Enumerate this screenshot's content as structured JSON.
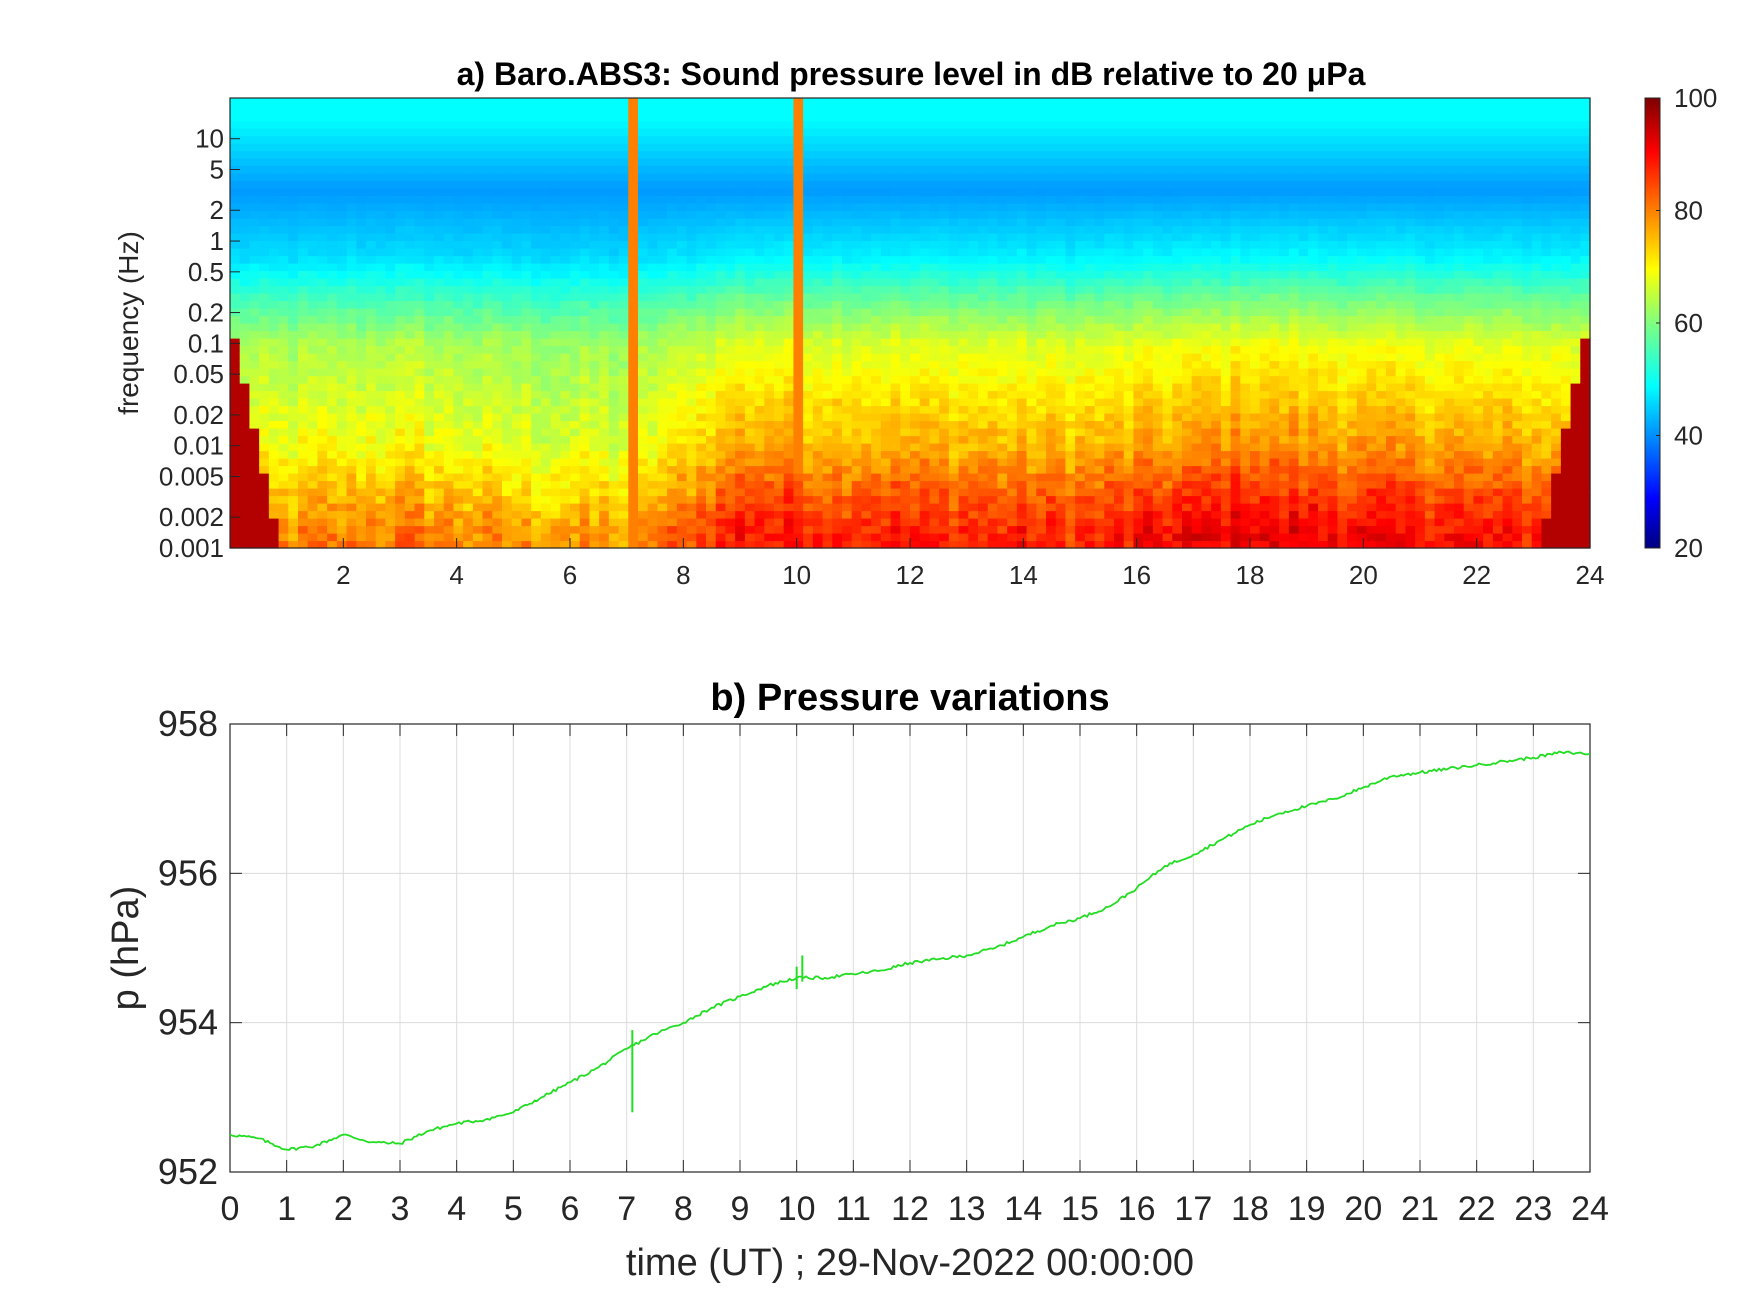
{
  "chart_data": [
    {
      "type": "heatmap",
      "title": "a) Baro.ABS3: Sound pressure level in dB relative to 20 μPa",
      "xlabel": "",
      "ylabel": "frequency (Hz)",
      "xlim": [
        0,
        24
      ],
      "x_ticks": [
        "2",
        "4",
        "6",
        "8",
        "10",
        "12",
        "14",
        "16",
        "18",
        "20",
        "22",
        "24"
      ],
      "y_scale": "log",
      "ylim": [
        0.001,
        25
      ],
      "y_ticks": [
        "10",
        "5",
        "2",
        "1",
        "0.5",
        "0.2",
        "0.1",
        "0.05",
        "0.02",
        "0.01",
        "0.005",
        "0.002",
        "0.001"
      ],
      "colormap": "jet",
      "colorbar": {
        "range": [
          20,
          100
        ],
        "ticks": [
          "100",
          "80",
          "60",
          "40",
          "20"
        ]
      },
      "band_levels_db": [
        {
          "band_hz": "10-25",
          "level": 50
        },
        {
          "band_hz": "2-5",
          "level": 42
        },
        {
          "band_hz": "0.5-1",
          "level": 48
        },
        {
          "band_hz": "0.05-0.2",
          "level": 65
        },
        {
          "band_hz": "0.005-0.02",
          "level": 72
        },
        {
          "band_hz": "0.001-0.002",
          "level": 83
        }
      ],
      "time_activity_db": [
        {
          "time_h": 1,
          "offset": -4
        },
        {
          "time_h": 3,
          "offset": -2
        },
        {
          "time_h": 5,
          "offset": -5
        },
        {
          "time_h": 7,
          "offset": -6
        },
        {
          "time_h": 9,
          "offset": 6
        },
        {
          "time_h": 12,
          "offset": 5
        },
        {
          "time_h": 15,
          "offset": 4
        },
        {
          "time_h": 18,
          "offset": 9
        },
        {
          "time_h": 20,
          "offset": 7
        },
        {
          "time_h": 23,
          "offset": 5
        }
      ],
      "transients_h": [
        7.1,
        10.0,
        10.1
      ],
      "grid": false
    },
    {
      "type": "line",
      "title": "b) Pressure variations",
      "xlabel": "time (UT) ; 29-Nov-2022 00:00:00",
      "ylabel": "p (hPa)",
      "xlim": [
        0,
        24
      ],
      "ylim": [
        952,
        958
      ],
      "x_ticks": [
        "0",
        "1",
        "2",
        "3",
        "4",
        "5",
        "6",
        "7",
        "8",
        "9",
        "10",
        "11",
        "12",
        "13",
        "14",
        "15",
        "16",
        "17",
        "18",
        "19",
        "20",
        "21",
        "22",
        "23",
        "24"
      ],
      "y_ticks": [
        "958",
        "956",
        "954",
        "952"
      ],
      "grid": true,
      "line_color": "#22dd22",
      "series": [
        {
          "x": [
            0,
            0.5,
            1,
            1.5,
            2,
            2.5,
            3,
            3.5,
            4,
            4.5,
            5,
            5.5,
            6,
            6.5,
            7,
            7.5,
            8,
            8.5,
            9,
            9.5,
            10,
            10.5,
            11,
            11.5,
            12,
            12.5,
            13,
            13.5,
            14,
            14.5,
            15,
            15.5,
            16,
            16.5,
            17,
            17.5,
            18,
            18.5,
            19,
            19.5,
            20,
            20.5,
            21,
            21.5,
            22,
            22.5,
            23,
            23.5,
            24
          ],
          "y": [
            952.5,
            952.45,
            952.3,
            952.35,
            952.5,
            952.4,
            952.38,
            952.55,
            952.65,
            952.7,
            952.8,
            953.0,
            953.2,
            953.4,
            953.65,
            953.85,
            954.0,
            954.2,
            954.35,
            954.5,
            954.6,
            954.6,
            954.65,
            954.7,
            954.8,
            954.85,
            954.9,
            955.0,
            955.15,
            955.3,
            955.4,
            955.55,
            955.8,
            956.1,
            956.25,
            956.45,
            956.65,
            956.8,
            956.9,
            957.0,
            957.15,
            957.3,
            957.35,
            957.4,
            957.45,
            957.5,
            957.55,
            957.62,
            957.6
          ]
        }
      ],
      "spikes": [
        {
          "x": 7.1,
          "ymin": 952.8,
          "ymax": 953.9
        },
        {
          "x": 10.0,
          "ymin": 954.45,
          "ymax": 954.75
        },
        {
          "x": 10.1,
          "ymin": 954.55,
          "ymax": 954.9
        }
      ]
    }
  ]
}
